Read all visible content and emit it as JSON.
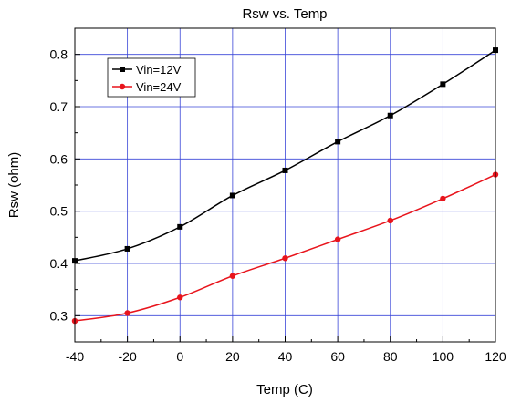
{
  "chart_data": {
    "type": "line",
    "title": "Rsw vs. Temp",
    "xlabel": "Temp (C)",
    "ylabel": "Rsw (ohm)",
    "xlim": [
      -40,
      120
    ],
    "ylim": [
      0.25,
      0.85
    ],
    "x_ticks": [
      -40,
      -20,
      0,
      20,
      40,
      60,
      80,
      100,
      120
    ],
    "y_ticks": [
      0.3,
      0.4,
      0.5,
      0.6,
      0.7,
      0.8
    ],
    "grid": true,
    "legend_position": "top-left",
    "x": [
      -40,
      -20,
      0,
      20,
      40,
      60,
      80,
      100,
      120
    ],
    "series": [
      {
        "name": "Vin=12V",
        "color": "#000000",
        "marker": "square",
        "values": [
          0.405,
          0.428,
          0.47,
          0.53,
          0.578,
          0.633,
          0.683,
          0.743,
          0.808
        ]
      },
      {
        "name": "Vin=24V",
        "color": "#e8141c",
        "marker": "circle",
        "values": [
          0.29,
          0.305,
          0.335,
          0.376,
          0.41,
          0.446,
          0.482,
          0.524,
          0.57
        ]
      }
    ]
  }
}
